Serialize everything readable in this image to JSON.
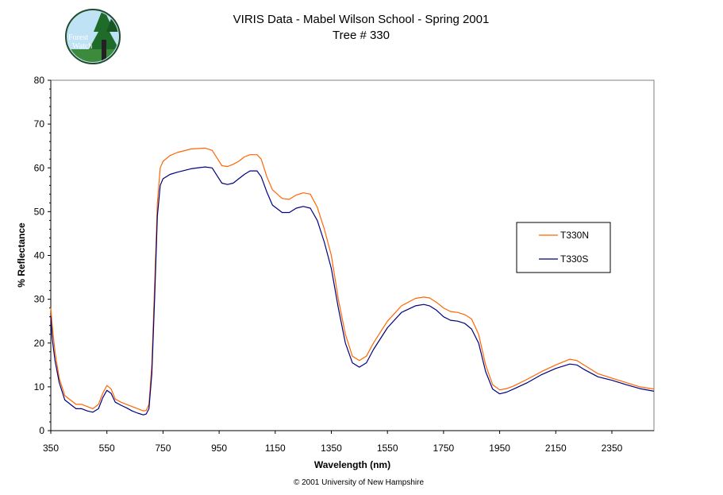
{
  "chart_data": {
    "type": "line",
    "title": "VIRIS Data - Mabel Wilson School - Spring 2001",
    "subtitle": "Tree # 330",
    "xlabel": "Wavelength (nm)",
    "ylabel": "% Reflectance",
    "xlim": [
      350,
      2500
    ],
    "ylim": [
      0,
      80
    ],
    "x_ticks": [
      "350",
      "550",
      "750",
      "950",
      "1150",
      "1350",
      "1550",
      "1750",
      "1950",
      "2150",
      "2350"
    ],
    "y_ticks": [
      "0",
      "10",
      "20",
      "30",
      "40",
      "50",
      "60",
      "70",
      "80"
    ],
    "grid": false,
    "legend_position": "right",
    "series": [
      {
        "name": "T330N",
        "color": "#ff6600",
        "points": [
          [
            350,
            28
          ],
          [
            355,
            24
          ],
          [
            365,
            18
          ],
          [
            380,
            12
          ],
          [
            400,
            8
          ],
          [
            420,
            7
          ],
          [
            440,
            6
          ],
          [
            460,
            6
          ],
          [
            480,
            5.5
          ],
          [
            500,
            5
          ],
          [
            520,
            6
          ],
          [
            535,
            8.5
          ],
          [
            550,
            10.3
          ],
          [
            565,
            9.5
          ],
          [
            580,
            7.2
          ],
          [
            600,
            6.5
          ],
          [
            620,
            6
          ],
          [
            640,
            5.5
          ],
          [
            660,
            5
          ],
          [
            680,
            4.5
          ],
          [
            690,
            4.6
          ],
          [
            700,
            6
          ],
          [
            710,
            15
          ],
          [
            720,
            33
          ],
          [
            730,
            52
          ],
          [
            740,
            60
          ],
          [
            750,
            61.5
          ],
          [
            775,
            62.8
          ],
          [
            800,
            63.5
          ],
          [
            850,
            64.3
          ],
          [
            900,
            64.5
          ],
          [
            925,
            64
          ],
          [
            945,
            62
          ],
          [
            960,
            60.5
          ],
          [
            980,
            60.3
          ],
          [
            1000,
            60.8
          ],
          [
            1020,
            61.5
          ],
          [
            1040,
            62.5
          ],
          [
            1060,
            63
          ],
          [
            1085,
            63
          ],
          [
            1100,
            62
          ],
          [
            1120,
            58
          ],
          [
            1140,
            55
          ],
          [
            1175,
            53
          ],
          [
            1200,
            52.8
          ],
          [
            1225,
            53.8
          ],
          [
            1250,
            54.3
          ],
          [
            1275,
            54
          ],
          [
            1300,
            51
          ],
          [
            1325,
            46
          ],
          [
            1350,
            40
          ],
          [
            1375,
            30
          ],
          [
            1400,
            22
          ],
          [
            1425,
            17
          ],
          [
            1450,
            16
          ],
          [
            1475,
            17
          ],
          [
            1500,
            20
          ],
          [
            1550,
            25
          ],
          [
            1600,
            28.5
          ],
          [
            1650,
            30.2
          ],
          [
            1680,
            30.5
          ],
          [
            1700,
            30.3
          ],
          [
            1725,
            29.3
          ],
          [
            1750,
            28
          ],
          [
            1775,
            27.2
          ],
          [
            1800,
            27
          ],
          [
            1825,
            26.5
          ],
          [
            1850,
            25.5
          ],
          [
            1875,
            22
          ],
          [
            1900,
            15
          ],
          [
            1925,
            10.5
          ],
          [
            1950,
            9.3
          ],
          [
            1975,
            9.6
          ],
          [
            2000,
            10.2
          ],
          [
            2050,
            11.8
          ],
          [
            2100,
            13.5
          ],
          [
            2150,
            15
          ],
          [
            2200,
            16.3
          ],
          [
            2225,
            16
          ],
          [
            2250,
            15
          ],
          [
            2300,
            13
          ],
          [
            2350,
            12
          ],
          [
            2400,
            11
          ],
          [
            2450,
            10
          ],
          [
            2500,
            9.5
          ]
        ]
      },
      {
        "name": "T330S",
        "color": "#000080",
        "points": [
          [
            350,
            26
          ],
          [
            355,
            21
          ],
          [
            365,
            16
          ],
          [
            380,
            11
          ],
          [
            400,
            7
          ],
          [
            420,
            6
          ],
          [
            440,
            5
          ],
          [
            460,
            5
          ],
          [
            480,
            4.5
          ],
          [
            500,
            4.2
          ],
          [
            520,
            5
          ],
          [
            535,
            7.5
          ],
          [
            550,
            9.2
          ],
          [
            565,
            8.5
          ],
          [
            580,
            6.5
          ],
          [
            600,
            5.8
          ],
          [
            620,
            5.2
          ],
          [
            640,
            4.5
          ],
          [
            660,
            4
          ],
          [
            680,
            3.6
          ],
          [
            690,
            3.8
          ],
          [
            700,
            5
          ],
          [
            710,
            13
          ],
          [
            720,
            30
          ],
          [
            730,
            49
          ],
          [
            740,
            56
          ],
          [
            750,
            57.5
          ],
          [
            775,
            58.5
          ],
          [
            800,
            59
          ],
          [
            850,
            59.8
          ],
          [
            900,
            60.2
          ],
          [
            925,
            60
          ],
          [
            945,
            58
          ],
          [
            960,
            56.5
          ],
          [
            980,
            56.2
          ],
          [
            1000,
            56.5
          ],
          [
            1020,
            57.5
          ],
          [
            1040,
            58.5
          ],
          [
            1060,
            59.3
          ],
          [
            1085,
            59.3
          ],
          [
            1100,
            58
          ],
          [
            1120,
            54.5
          ],
          [
            1140,
            51.5
          ],
          [
            1175,
            49.8
          ],
          [
            1200,
            49.8
          ],
          [
            1225,
            50.8
          ],
          [
            1250,
            51.2
          ],
          [
            1275,
            50.8
          ],
          [
            1300,
            48
          ],
          [
            1325,
            43
          ],
          [
            1350,
            37
          ],
          [
            1375,
            28
          ],
          [
            1400,
            20
          ],
          [
            1425,
            15.5
          ],
          [
            1450,
            14.5
          ],
          [
            1475,
            15.5
          ],
          [
            1500,
            18.5
          ],
          [
            1550,
            23.5
          ],
          [
            1600,
            27
          ],
          [
            1650,
            28.5
          ],
          [
            1680,
            28.8
          ],
          [
            1700,
            28.5
          ],
          [
            1725,
            27.5
          ],
          [
            1750,
            26
          ],
          [
            1775,
            25.2
          ],
          [
            1800,
            25
          ],
          [
            1825,
            24.5
          ],
          [
            1850,
            23.2
          ],
          [
            1875,
            20
          ],
          [
            1900,
            13.5
          ],
          [
            1925,
            9.5
          ],
          [
            1950,
            8.4
          ],
          [
            1975,
            8.8
          ],
          [
            2000,
            9.5
          ],
          [
            2050,
            11
          ],
          [
            2100,
            12.8
          ],
          [
            2150,
            14.2
          ],
          [
            2200,
            15.2
          ],
          [
            2225,
            15
          ],
          [
            2250,
            14
          ],
          [
            2300,
            12.3
          ],
          [
            2350,
            11.5
          ],
          [
            2400,
            10.5
          ],
          [
            2450,
            9.6
          ],
          [
            2500,
            9
          ]
        ]
      }
    ]
  },
  "footer": {
    "copyright": "© 2001 University of New Hampshire"
  },
  "logo": {
    "line1": "Forest",
    "line2": "Watch",
    "icon": "forest-watch-logo"
  }
}
